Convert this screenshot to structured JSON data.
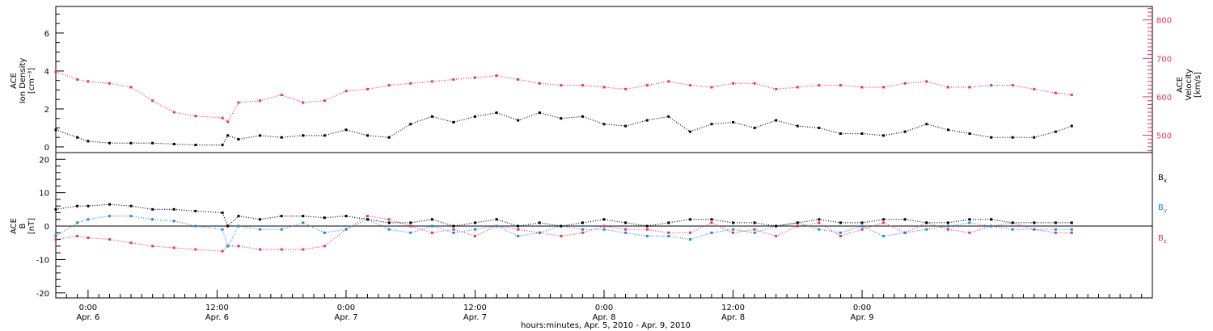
{
  "colors": {
    "black": "#000000",
    "pink": "#e8335f",
    "blue": "#1f87e6"
  },
  "chart_data": [
    {
      "type": "scatter",
      "panel": "top",
      "ylabel_left": [
        "ACE",
        "Ion Density",
        "[cm⁻³]"
      ],
      "ylabel_right": [
        "ACE",
        "Velocity",
        "[km/s]"
      ],
      "xlim_hours": [
        -3,
        99
      ],
      "ylim_left": [
        -0.3,
        7.4
      ],
      "ylim_right": [
        455,
        835
      ],
      "yticks_left": [
        0,
        2,
        4,
        6
      ],
      "yticks_right": [
        500,
        600,
        700,
        800
      ],
      "grid": false,
      "series": [
        {
          "name": "Ion Density",
          "axis": "left",
          "color": "#000000",
          "x": [
            -3,
            -1,
            0,
            2,
            4,
            6,
            8,
            10,
            12.5,
            13,
            14,
            16,
            18,
            20,
            22,
            24,
            26,
            28,
            30,
            32,
            34,
            36,
            38,
            40,
            42,
            44,
            46,
            48,
            50,
            52,
            54,
            56,
            58,
            60,
            62,
            64,
            66,
            68,
            70,
            72,
            74,
            76,
            78,
            80,
            82,
            84,
            86,
            88,
            90,
            91.5
          ],
          "y": [
            0.9,
            0.5,
            0.3,
            0.2,
            0.2,
            0.2,
            0.15,
            0.1,
            0.1,
            0.6,
            0.4,
            0.6,
            0.5,
            0.6,
            0.6,
            0.9,
            0.6,
            0.5,
            1.2,
            1.6,
            1.3,
            1.6,
            1.8,
            1.4,
            1.8,
            1.5,
            1.6,
            1.2,
            1.1,
            1.4,
            1.6,
            0.8,
            1.2,
            1.3,
            1.0,
            1.4,
            1.1,
            1.0,
            0.7,
            0.7,
            0.6,
            0.8,
            1.2,
            0.9,
            0.7,
            0.5,
            0.5,
            0.5,
            0.8,
            1.1
          ]
        },
        {
          "name": "Velocity",
          "axis": "right",
          "color": "#e8335f",
          "x": [
            -3,
            -1,
            0,
            2,
            4,
            6,
            8,
            10,
            12.5,
            13,
            14,
            16,
            18,
            20,
            22,
            24,
            26,
            28,
            30,
            32,
            34,
            36,
            38,
            40,
            42,
            44,
            46,
            48,
            50,
            52,
            54,
            56,
            58,
            60,
            62,
            64,
            66,
            68,
            70,
            72,
            74,
            76,
            78,
            80,
            82,
            84,
            86,
            88,
            90,
            91.5
          ],
          "y": [
            665,
            645,
            640,
            635,
            625,
            590,
            560,
            550,
            545,
            535,
            585,
            590,
            605,
            585,
            590,
            615,
            620,
            630,
            635,
            640,
            645,
            650,
            655,
            645,
            635,
            630,
            630,
            625,
            620,
            630,
            640,
            630,
            625,
            635,
            635,
            620,
            625,
            630,
            630,
            625,
            625,
            635,
            640,
            625,
            625,
            630,
            630,
            620,
            610,
            605
          ]
        }
      ]
    },
    {
      "type": "scatter",
      "panel": "bottom",
      "ylabel_left": [
        "ACE",
        "B",
        "[nT]"
      ],
      "xlim_hours": [
        -3,
        99
      ],
      "ylim": [
        -21.5,
        22
      ],
      "yticks": [
        -20,
        -10,
        0,
        10,
        20
      ],
      "grid": false,
      "zero_line": true,
      "legend": [
        "Bx",
        "By",
        "Bz"
      ],
      "legend_placement": "right",
      "series": [
        {
          "name": "Bx",
          "color": "#000000",
          "x": [
            -3,
            -1,
            0,
            2,
            4,
            6,
            8,
            10,
            12.5,
            13,
            14,
            16,
            18,
            20,
            22,
            24,
            26,
            28,
            30,
            32,
            34,
            36,
            38,
            40,
            42,
            44,
            46,
            48,
            50,
            52,
            54,
            56,
            58,
            60,
            62,
            64,
            66,
            68,
            70,
            72,
            74,
            76,
            78,
            80,
            82,
            84,
            86,
            88,
            90,
            91.5
          ],
          "y": [
            5,
            6,
            6,
            6.5,
            6,
            5,
            5,
            4.5,
            4,
            0,
            3,
            2,
            3,
            3,
            2.5,
            3,
            2,
            1,
            1,
            2,
            0,
            1,
            2,
            0,
            1,
            0,
            1,
            2,
            1,
            0,
            1,
            2,
            2,
            1,
            1,
            0,
            1,
            2,
            1,
            1,
            2,
            2,
            1,
            1,
            2,
            2,
            1,
            1,
            1,
            1
          ]
        },
        {
          "name": "By",
          "color": "#1f87e6",
          "x": [
            -3,
            -1,
            0,
            2,
            4,
            6,
            8,
            10,
            12.5,
            13,
            14,
            16,
            18,
            20,
            22,
            24,
            26,
            28,
            30,
            32,
            34,
            36,
            38,
            40,
            42,
            44,
            46,
            48,
            50,
            52,
            54,
            56,
            58,
            60,
            62,
            64,
            66,
            68,
            70,
            72,
            74,
            76,
            78,
            80,
            82,
            84,
            86,
            88,
            90,
            91.5
          ],
          "y": [
            -3,
            1,
            2,
            3,
            3,
            2,
            1.5,
            0,
            -1,
            -6,
            0,
            -1,
            -1,
            1,
            -2,
            -1,
            2,
            -1,
            -2,
            0,
            -2,
            -1,
            0,
            -3,
            -2,
            0,
            -1,
            -1,
            -2,
            -3,
            -3,
            -4,
            -2,
            -1,
            -2,
            0,
            1,
            -1,
            -2,
            0,
            -3,
            -2,
            -1,
            0,
            1,
            0,
            -1,
            -1,
            -1,
            -1
          ]
        },
        {
          "name": "Bz",
          "color": "#e8335f",
          "x": [
            -3,
            -1,
            0,
            2,
            4,
            6,
            8,
            10,
            12.5,
            13,
            14,
            16,
            18,
            20,
            22,
            24,
            26,
            28,
            30,
            32,
            34,
            36,
            38,
            40,
            42,
            44,
            46,
            48,
            50,
            52,
            54,
            56,
            58,
            60,
            62,
            64,
            66,
            68,
            70,
            72,
            74,
            76,
            78,
            80,
            82,
            84,
            86,
            88,
            90,
            91.5
          ],
          "y": [
            -4,
            -3,
            -3.5,
            -4,
            -5,
            -6,
            -6.5,
            -7,
            -7.5,
            -6,
            -6,
            -7,
            -7,
            -7,
            -6,
            -1,
            3,
            2,
            0,
            -2,
            -1,
            -3,
            0,
            -1,
            -2,
            -3,
            -2,
            0,
            -1,
            -1,
            -2,
            -2,
            1,
            -2,
            -1,
            -3,
            0,
            1,
            -3,
            -1,
            1,
            -2,
            1,
            -1,
            -2,
            0,
            1,
            -1,
            -2,
            -2
          ]
        }
      ]
    }
  ],
  "axis_x": {
    "title": "hours:minutes, Apr. 5, 2010 - Apr. 9, 2010",
    "ticks": [
      {
        "hours": 0,
        "time": "0:00",
        "date": "Apr. 6"
      },
      {
        "hours": 12,
        "time": "12:00",
        "date": "Apr. 6"
      },
      {
        "hours": 24,
        "time": "0:00",
        "date": "Apr. 7"
      },
      {
        "hours": 36,
        "time": "12:00",
        "date": "Apr. 7"
      },
      {
        "hours": 48,
        "time": "0:00",
        "date": "Apr. 8"
      },
      {
        "hours": 60,
        "time": "12:00",
        "date": "Apr. 8"
      },
      {
        "hours": 72,
        "time": "0:00",
        "date": "Apr. 9"
      }
    ]
  }
}
